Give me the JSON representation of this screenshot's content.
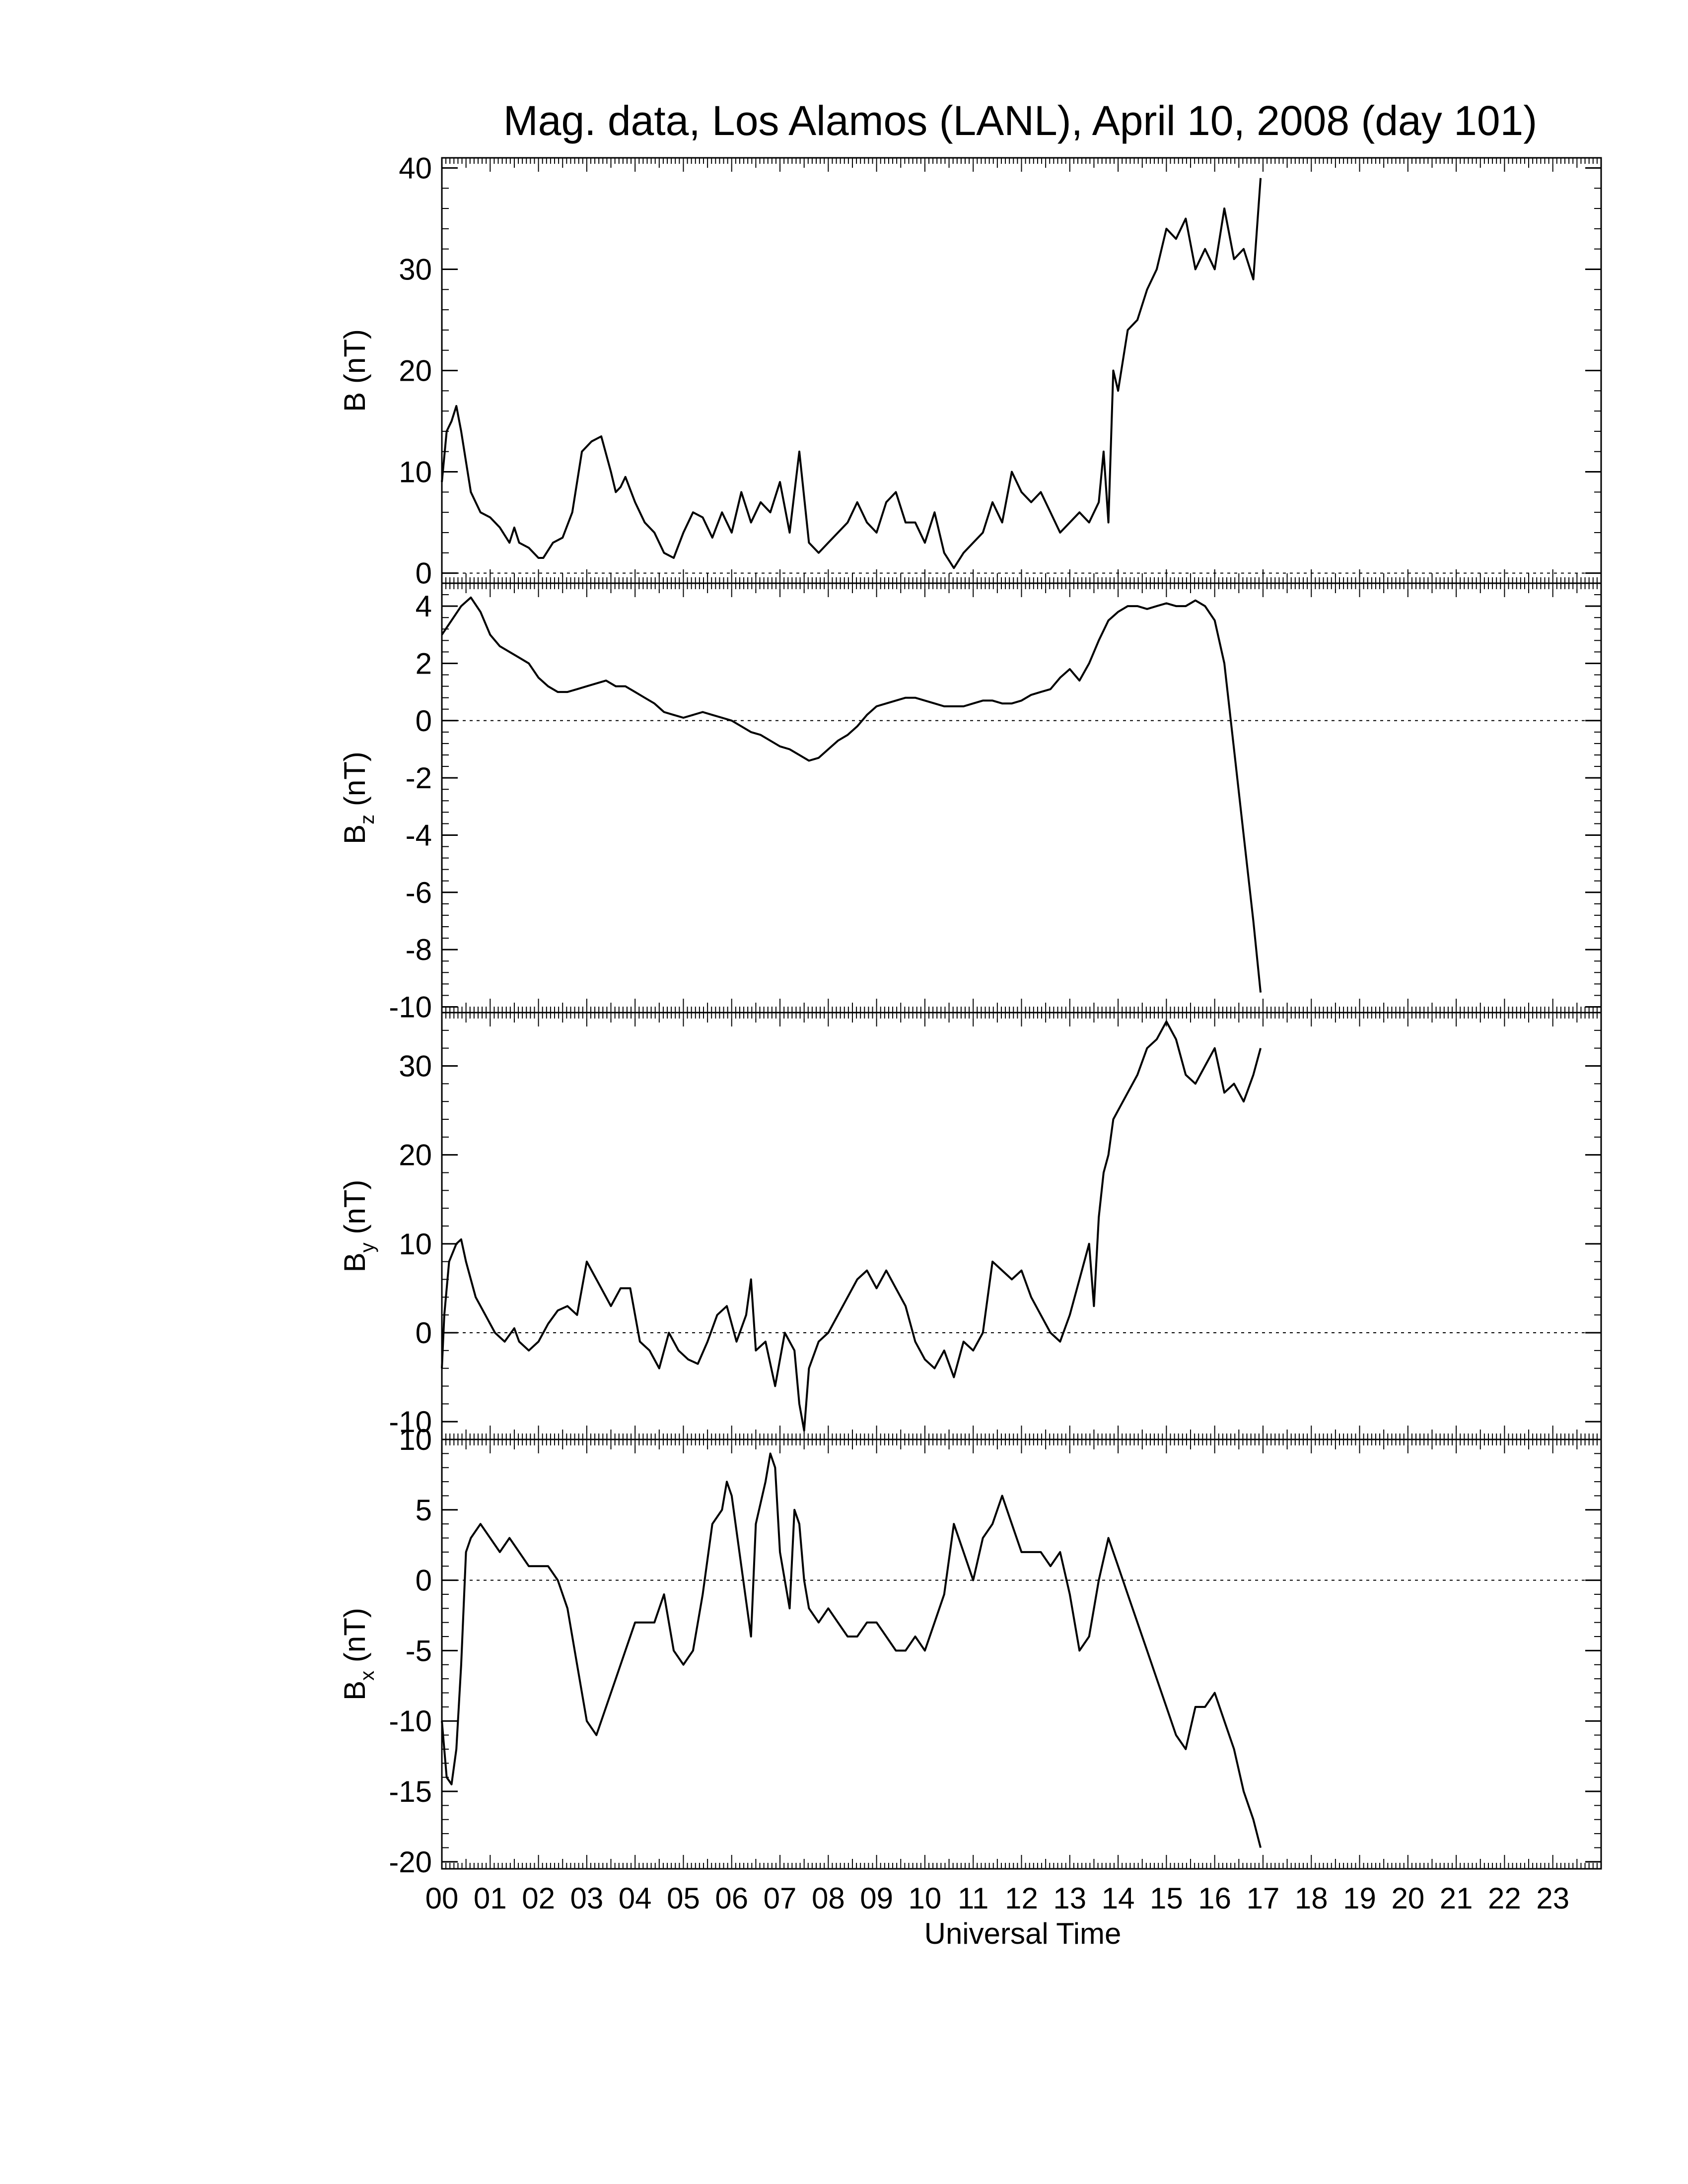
{
  "chart_data": {
    "type": "line",
    "title": "Mag. data, Los Alamos (LANL), April 10, 2008 (day 101)",
    "xlabel": "Universal Time",
    "x_tick_labels": [
      "00",
      "01",
      "02",
      "03",
      "04",
      "05",
      "06",
      "07",
      "08",
      "09",
      "10",
      "11",
      "12",
      "13",
      "14",
      "15",
      "16",
      "17",
      "18",
      "19",
      "20",
      "21",
      "22",
      "23"
    ],
    "xlim": [
      0,
      24
    ],
    "grid": false,
    "zero_reference_line": "dotted",
    "panels": [
      {
        "id": "B",
        "ylabel": {
          "base": "B",
          "sub": "",
          "unit": "(nT)"
        },
        "ylim": [
          -1,
          41
        ],
        "yticks": [
          0,
          10,
          20,
          30,
          40
        ],
        "series": [
          {
            "x": [
              0.0,
              0.1,
              0.2,
              0.3,
              0.4,
              0.5,
              0.6,
              0.8,
              1.0,
              1.2,
              1.4,
              1.5,
              1.6,
              1.8,
              2.0,
              2.1,
              2.3,
              2.5,
              2.7,
              2.9,
              3.1,
              3.3,
              3.5,
              3.6,
              3.7,
              3.8,
              4.0,
              4.2,
              4.4,
              4.6,
              4.8,
              5.0,
              5.2,
              5.4,
              5.6,
              5.8,
              6.0,
              6.2,
              6.4,
              6.6,
              6.8,
              7.0,
              7.2,
              7.4,
              7.6,
              7.8,
              8.0,
              8.2,
              8.4,
              8.6,
              8.8,
              9.0,
              9.2,
              9.4,
              9.6,
              9.8,
              10.0,
              10.2,
              10.4,
              10.6,
              10.8,
              11.0,
              11.2,
              11.4,
              11.6,
              11.8,
              12.0,
              12.2,
              12.4,
              12.6,
              12.8,
              13.0,
              13.2,
              13.4,
              13.6,
              13.7,
              13.8,
              13.9,
              14.0,
              14.2,
              14.4,
              14.6,
              14.8,
              15.0,
              15.2,
              15.4,
              15.6,
              15.8,
              16.0,
              16.2,
              16.4,
              16.6,
              16.8,
              16.95
            ],
            "y": [
              9,
              14,
              15,
              16.5,
              14,
              11,
              8,
              6,
              5.5,
              4.5,
              3,
              4.5,
              3,
              2.5,
              1.5,
              1.5,
              3,
              3.5,
              6,
              12,
              13,
              13.5,
              10,
              8,
              8.5,
              9.5,
              7,
              5,
              4,
              2,
              1.5,
              4,
              6,
              5.5,
              3.5,
              6,
              4,
              8,
              5,
              7,
              6,
              9,
              4,
              12,
              3,
              2,
              3,
              4,
              5,
              7,
              5,
              4,
              7,
              8,
              5,
              5,
              3,
              6,
              2,
              0.5,
              2,
              3,
              4,
              7,
              5,
              10,
              8,
              7,
              8,
              6,
              4,
              5,
              6,
              5,
              7,
              12,
              5,
              20,
              18,
              24,
              25,
              28,
              30,
              34,
              33,
              35,
              30,
              32,
              30,
              36,
              31,
              32,
              29,
              39
            ]
          }
        ]
      },
      {
        "id": "Bz",
        "ylabel": {
          "base": "B",
          "sub": "z",
          "unit": "(nT)"
        },
        "ylim": [
          -10.2,
          4.8
        ],
        "yticks": [
          4,
          2,
          0,
          -2,
          -4,
          -6,
          -8,
          -10
        ],
        "series": [
          {
            "x": [
              0.0,
              0.2,
              0.4,
              0.6,
              0.8,
              1.0,
              1.2,
              1.4,
              1.6,
              1.8,
              2.0,
              2.2,
              2.4,
              2.6,
              2.8,
              3.0,
              3.2,
              3.4,
              3.6,
              3.8,
              4.0,
              4.2,
              4.4,
              4.6,
              4.8,
              5.0,
              5.2,
              5.4,
              5.6,
              5.8,
              6.0,
              6.2,
              6.4,
              6.6,
              6.8,
              7.0,
              7.2,
              7.4,
              7.6,
              7.8,
              8.0,
              8.2,
              8.4,
              8.6,
              8.8,
              9.0,
              9.2,
              9.4,
              9.6,
              9.8,
              10.0,
              10.2,
              10.4,
              10.6,
              10.8,
              11.0,
              11.2,
              11.4,
              11.6,
              11.8,
              12.0,
              12.2,
              12.4,
              12.6,
              12.8,
              13.0,
              13.2,
              13.4,
              13.6,
              13.8,
              14.0,
              14.2,
              14.4,
              14.6,
              14.8,
              15.0,
              15.2,
              15.4,
              15.6,
              15.8,
              16.0,
              16.2,
              16.4,
              16.6,
              16.8,
              16.95
            ],
            "y": [
              3.0,
              3.5,
              4.0,
              4.3,
              3.8,
              3.0,
              2.6,
              2.4,
              2.2,
              2.0,
              1.5,
              1.2,
              1.0,
              1.0,
              1.1,
              1.2,
              1.3,
              1.4,
              1.2,
              1.2,
              1.0,
              0.8,
              0.6,
              0.3,
              0.2,
              0.1,
              0.2,
              0.3,
              0.2,
              0.1,
              0.0,
              -0.2,
              -0.4,
              -0.5,
              -0.7,
              -0.9,
              -1.0,
              -1.2,
              -1.4,
              -1.3,
              -1.0,
              -0.7,
              -0.5,
              -0.2,
              0.2,
              0.5,
              0.6,
              0.7,
              0.8,
              0.8,
              0.7,
              0.6,
              0.5,
              0.5,
              0.5,
              0.6,
              0.7,
              0.7,
              0.6,
              0.6,
              0.7,
              0.9,
              1.0,
              1.1,
              1.5,
              1.8,
              1.4,
              2.0,
              2.8,
              3.5,
              3.8,
              4.0,
              4.0,
              3.9,
              4.0,
              4.1,
              4.0,
              4.0,
              4.2,
              4.0,
              3.5,
              2.0,
              -1.0,
              -4.0,
              -7.0,
              -9.5
            ]
          }
        ]
      },
      {
        "id": "By",
        "ylabel": {
          "base": "B",
          "sub": "y",
          "unit": "(nT)"
        },
        "ylim": [
          -12,
          36
        ],
        "yticks": [
          30,
          20,
          10,
          0,
          -10
        ],
        "series": [
          {
            "x": [
              0.0,
              0.05,
              0.15,
              0.3,
              0.4,
              0.5,
              0.7,
              0.9,
              1.1,
              1.3,
              1.5,
              1.6,
              1.8,
              2.0,
              2.2,
              2.4,
              2.6,
              2.8,
              3.0,
              3.1,
              3.3,
              3.5,
              3.7,
              3.9,
              4.1,
              4.3,
              4.5,
              4.7,
              4.9,
              5.1,
              5.3,
              5.5,
              5.7,
              5.9,
              6.1,
              6.3,
              6.4,
              6.5,
              6.7,
              6.9,
              7.1,
              7.3,
              7.4,
              7.5,
              7.6,
              7.8,
              8.0,
              8.2,
              8.4,
              8.6,
              8.8,
              9.0,
              9.2,
              9.4,
              9.6,
              9.8,
              10.0,
              10.2,
              10.4,
              10.6,
              10.8,
              11.0,
              11.2,
              11.4,
              11.6,
              11.8,
              12.0,
              12.2,
              12.4,
              12.6,
              12.8,
              13.0,
              13.2,
              13.4,
              13.5,
              13.6,
              13.7,
              13.8,
              13.9,
              14.0,
              14.2,
              14.4,
              14.6,
              14.8,
              15.0,
              15.2,
              15.4,
              15.6,
              15.8,
              16.0,
              16.2,
              16.4,
              16.6,
              16.8,
              16.95
            ],
            "y": [
              -4,
              2,
              8,
              10,
              10.5,
              8,
              4,
              2,
              0,
              -1,
              0.5,
              -1,
              -2,
              -1,
              1,
              2.5,
              3,
              2,
              8,
              7,
              5,
              3,
              5,
              5,
              -1,
              -2,
              -4,
              0,
              -2,
              -3,
              -3.5,
              -1,
              2,
              3,
              -1,
              2,
              6,
              -2,
              -1,
              -6,
              0,
              -2,
              -8,
              -11,
              -4,
              -1,
              0,
              2,
              4,
              6,
              7,
              5,
              7,
              5,
              3,
              -1,
              -3,
              -4,
              -2,
              -5,
              -1,
              -2,
              0,
              8,
              7,
              6,
              7,
              4,
              2,
              0,
              -1,
              2,
              6,
              10,
              3,
              13,
              18,
              20,
              24,
              25,
              27,
              29,
              32,
              33,
              35,
              33,
              29,
              28,
              30,
              32,
              27,
              28,
              26,
              29,
              32
            ]
          }
        ]
      },
      {
        "id": "Bx",
        "ylabel": {
          "base": "B",
          "sub": "x",
          "unit": "(nT)"
        },
        "ylim": [
          -20.5,
          10
        ],
        "yticks": [
          10,
          5,
          0,
          -5,
          -10,
          -15,
          -20
        ],
        "series": [
          {
            "x": [
              0.0,
              0.1,
              0.2,
              0.3,
              0.4,
              0.5,
              0.6,
              0.8,
              1.0,
              1.2,
              1.4,
              1.6,
              1.8,
              2.0,
              2.2,
              2.4,
              2.6,
              2.8,
              3.0,
              3.2,
              3.4,
              3.6,
              3.8,
              4.0,
              4.2,
              4.4,
              4.6,
              4.8,
              5.0,
              5.2,
              5.4,
              5.6,
              5.8,
              5.9,
              6.0,
              6.2,
              6.4,
              6.5,
              6.7,
              6.8,
              6.9,
              7.0,
              7.2,
              7.3,
              7.4,
              7.5,
              7.6,
              7.8,
              8.0,
              8.2,
              8.4,
              8.6,
              8.8,
              9.0,
              9.2,
              9.4,
              9.6,
              9.8,
              10.0,
              10.2,
              10.4,
              10.6,
              10.8,
              11.0,
              11.2,
              11.4,
              11.6,
              11.8,
              12.0,
              12.2,
              12.4,
              12.6,
              12.8,
              13.0,
              13.2,
              13.4,
              13.6,
              13.8,
              14.0,
              14.2,
              14.4,
              14.6,
              14.8,
              15.0,
              15.2,
              15.4,
              15.6,
              15.8,
              16.0,
              16.2,
              16.4,
              16.6,
              16.8,
              16.95
            ],
            "y": [
              -10,
              -14,
              -14.5,
              -12,
              -6,
              2,
              3,
              4,
              3,
              2,
              3,
              2,
              1,
              1,
              1,
              0,
              -2,
              -6,
              -10,
              -11,
              -9,
              -7,
              -5,
              -3,
              -3,
              -3,
              -1,
              -5,
              -6,
              -5,
              -1,
              4,
              5,
              7,
              6,
              1,
              -4,
              4,
              7,
              9,
              8,
              2,
              -2,
              5,
              4,
              0,
              -2,
              -3,
              -2,
              -3,
              -4,
              -4,
              -3,
              -3,
              -4,
              -5,
              -5,
              -4,
              -5,
              -3,
              -1,
              4,
              2,
              0,
              3,
              4,
              6,
              4,
              2,
              2,
              2,
              1,
              2,
              -1,
              -5,
              -4,
              0,
              3,
              1,
              -1,
              -3,
              -5,
              -7,
              -9,
              -11,
              -12,
              -9,
              -9,
              -8,
              -10,
              -12,
              -15,
              -17,
              -19
            ]
          }
        ]
      }
    ]
  }
}
